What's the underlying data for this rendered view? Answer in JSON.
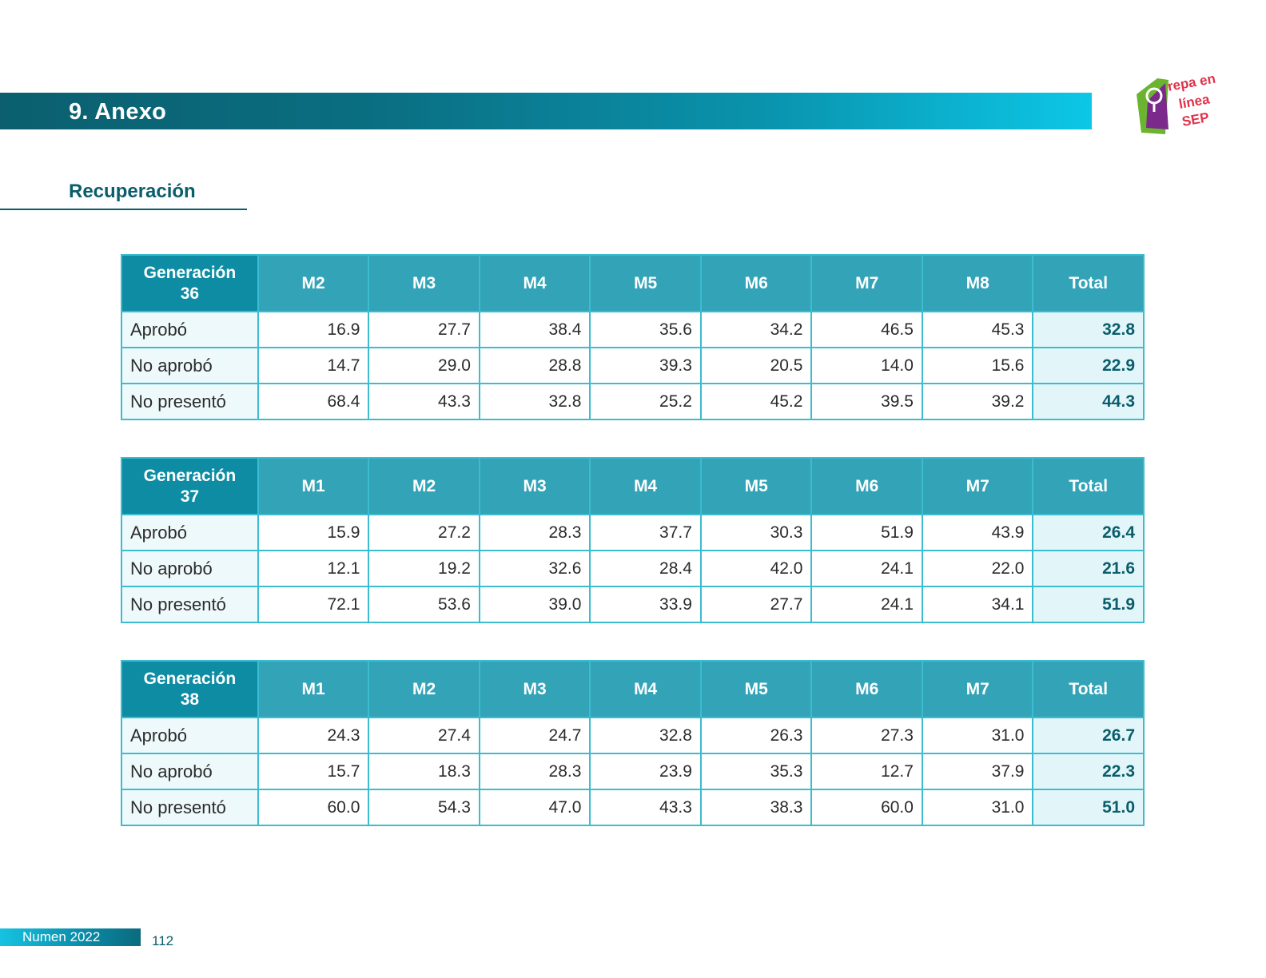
{
  "header": {
    "title": "9. Anexo"
  },
  "logo": {
    "text": "Prepa en línea SEP"
  },
  "section": {
    "title": "Recuperación"
  },
  "tables": [
    {
      "generation_label": [
        "Generación",
        "36"
      ],
      "columns": [
        "M2",
        "M3",
        "M4",
        "M5",
        "M6",
        "M7",
        "M8",
        "Total"
      ],
      "rows": [
        {
          "label": "Aprobó",
          "values": [
            "16.9",
            "27.7",
            "38.4",
            "35.6",
            "34.2",
            "46.5",
            "45.3"
          ],
          "total": "32.8"
        },
        {
          "label": "No aprobó",
          "values": [
            "14.7",
            "29.0",
            "28.8",
            "39.3",
            "20.5",
            "14.0",
            "15.6"
          ],
          "total": "22.9"
        },
        {
          "label": "No presentó",
          "values": [
            "68.4",
            "43.3",
            "32.8",
            "25.2",
            "45.2",
            "39.5",
            "39.2"
          ],
          "total": "44.3"
        }
      ]
    },
    {
      "generation_label": [
        "Generación",
        "37"
      ],
      "columns": [
        "M1",
        "M2",
        "M3",
        "M4",
        "M5",
        "M6",
        "M7",
        "Total"
      ],
      "rows": [
        {
          "label": "Aprobó",
          "values": [
            "15.9",
            "27.2",
            "28.3",
            "37.7",
            "30.3",
            "51.9",
            "43.9"
          ],
          "total": "26.4"
        },
        {
          "label": "No aprobó",
          "values": [
            "12.1",
            "19.2",
            "32.6",
            "28.4",
            "42.0",
            "24.1",
            "22.0"
          ],
          "total": "21.6"
        },
        {
          "label": "No presentó",
          "values": [
            "72.1",
            "53.6",
            "39.0",
            "33.9",
            "27.7",
            "24.1",
            "34.1"
          ],
          "total": "51.9"
        }
      ]
    },
    {
      "generation_label": [
        "Generación",
        "38"
      ],
      "columns": [
        "M1",
        "M2",
        "M3",
        "M4",
        "M5",
        "M6",
        "M7",
        "Total"
      ],
      "rows": [
        {
          "label": "Aprobó",
          "values": [
            "24.3",
            "27.4",
            "24.7",
            "32.8",
            "26.3",
            "27.3",
            "31.0"
          ],
          "total": "26.7"
        },
        {
          "label": "No aprobó",
          "values": [
            "15.7",
            "18.3",
            "28.3",
            "23.9",
            "35.3",
            "12.7",
            "37.9"
          ],
          "total": "22.3"
        },
        {
          "label": "No presentó",
          "values": [
            "60.0",
            "54.3",
            "47.0",
            "43.3",
            "38.3",
            "60.0",
            "31.0"
          ],
          "total": "51.0"
        }
      ]
    }
  ],
  "footer": {
    "publication": "Numen 2022",
    "page_number": "112"
  },
  "colors": {
    "brand_dark": "#0b5d6b",
    "header_cell": "#33a3b8",
    "generation_cell": "#0d8ca4",
    "grid_line": "#3bbcd0",
    "total_cell": "#e2f6fa"
  }
}
